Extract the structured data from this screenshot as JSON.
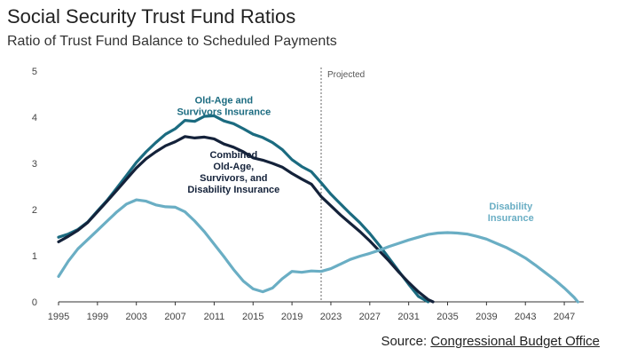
{
  "title": "Social Security Trust Fund Ratios",
  "subtitle": "Ratio of Trust Fund Balance to Scheduled Payments",
  "source": {
    "prefix": "Source: ",
    "link_text": "Congressional Budget Office"
  },
  "colors": {
    "oasi": "#1b6b80",
    "combined": "#14223a",
    "di": "#6aaec4",
    "axis": "#333333",
    "divider": "#666666"
  },
  "chart_data": {
    "type": "line",
    "title": "Social Security Trust Fund Ratios",
    "subtitle": "Ratio of Trust Fund Balance to Scheduled Payments",
    "xlim": [
      1995,
      2049
    ],
    "ylim": [
      0,
      5
    ],
    "x_ticks": [
      1995,
      1999,
      2003,
      2007,
      2011,
      2015,
      2019,
      2023,
      2027,
      2031,
      2035,
      2039,
      2043,
      2047
    ],
    "y_ticks": [
      0,
      1,
      2,
      3,
      4,
      5
    ],
    "projected_start": 2022,
    "projected_label": "Projected",
    "grid": false,
    "series": [
      {
        "name": "Old-Age and Survivors Insurance",
        "label_lines": [
          "Old-Age and",
          "Survivors Insurance"
        ],
        "color": "#1b6b80",
        "points": [
          [
            1995,
            1.4
          ],
          [
            1996,
            1.47
          ],
          [
            1997,
            1.57
          ],
          [
            1998,
            1.73
          ],
          [
            1999,
            1.97
          ],
          [
            2000,
            2.2
          ],
          [
            2001,
            2.47
          ],
          [
            2002,
            2.74
          ],
          [
            2003,
            3.02
          ],
          [
            2004,
            3.25
          ],
          [
            2005,
            3.45
          ],
          [
            2006,
            3.63
          ],
          [
            2007,
            3.75
          ],
          [
            2008,
            3.93
          ],
          [
            2009,
            3.91
          ],
          [
            2010,
            4.02
          ],
          [
            2011,
            4.03
          ],
          [
            2012,
            3.92
          ],
          [
            2013,
            3.86
          ],
          [
            2014,
            3.75
          ],
          [
            2015,
            3.63
          ],
          [
            2016,
            3.56
          ],
          [
            2017,
            3.45
          ],
          [
            2018,
            3.3
          ],
          [
            2019,
            3.08
          ],
          [
            2020,
            2.93
          ],
          [
            2021,
            2.82
          ],
          [
            2022,
            2.58
          ],
          [
            2023,
            2.33
          ],
          [
            2024,
            2.12
          ],
          [
            2025,
            1.91
          ],
          [
            2026,
            1.71
          ],
          [
            2027,
            1.48
          ],
          [
            2028,
            1.22
          ],
          [
            2029,
            0.94
          ],
          [
            2030,
            0.66
          ],
          [
            2031,
            0.38
          ],
          [
            2032,
            0.12
          ],
          [
            2033,
            0.0
          ]
        ]
      },
      {
        "name": "Combined Old-Age, Survivors, and Disability Insurance",
        "label_lines": [
          "Combined",
          "Old-Age,",
          "Survivors, and",
          "Disability Insurance"
        ],
        "color": "#14223a",
        "points": [
          [
            1995,
            1.3
          ],
          [
            1996,
            1.42
          ],
          [
            1997,
            1.55
          ],
          [
            1998,
            1.72
          ],
          [
            1999,
            1.95
          ],
          [
            2000,
            2.18
          ],
          [
            2001,
            2.42
          ],
          [
            2002,
            2.66
          ],
          [
            2003,
            2.9
          ],
          [
            2004,
            3.1
          ],
          [
            2005,
            3.25
          ],
          [
            2006,
            3.38
          ],
          [
            2007,
            3.47
          ],
          [
            2008,
            3.58
          ],
          [
            2009,
            3.55
          ],
          [
            2010,
            3.57
          ],
          [
            2011,
            3.53
          ],
          [
            2012,
            3.42
          ],
          [
            2013,
            3.35
          ],
          [
            2014,
            3.25
          ],
          [
            2015,
            3.12
          ],
          [
            2016,
            3.07
          ],
          [
            2017,
            3.0
          ],
          [
            2018,
            2.92
          ],
          [
            2019,
            2.78
          ],
          [
            2020,
            2.66
          ],
          [
            2021,
            2.55
          ],
          [
            2022,
            2.28
          ],
          [
            2023,
            2.08
          ],
          [
            2024,
            1.88
          ],
          [
            2025,
            1.7
          ],
          [
            2026,
            1.52
          ],
          [
            2027,
            1.32
          ],
          [
            2028,
            1.1
          ],
          [
            2029,
            0.88
          ],
          [
            2030,
            0.64
          ],
          [
            2031,
            0.42
          ],
          [
            2032,
            0.22
          ],
          [
            2033,
            0.05
          ],
          [
            2033.5,
            0.0
          ]
        ]
      },
      {
        "name": "Disability Insurance",
        "label_lines": [
          "Disability",
          "Insurance"
        ],
        "color": "#6aaec4",
        "points": [
          [
            1995,
            0.55
          ],
          [
            1996,
            0.88
          ],
          [
            1997,
            1.15
          ],
          [
            1998,
            1.35
          ],
          [
            1999,
            1.55
          ],
          [
            2000,
            1.75
          ],
          [
            2001,
            1.95
          ],
          [
            2002,
            2.12
          ],
          [
            2003,
            2.21
          ],
          [
            2004,
            2.18
          ],
          [
            2005,
            2.1
          ],
          [
            2006,
            2.06
          ],
          [
            2007,
            2.05
          ],
          [
            2008,
            1.95
          ],
          [
            2009,
            1.75
          ],
          [
            2010,
            1.52
          ],
          [
            2011,
            1.25
          ],
          [
            2012,
            0.98
          ],
          [
            2013,
            0.7
          ],
          [
            2014,
            0.45
          ],
          [
            2015,
            0.28
          ],
          [
            2016,
            0.22
          ],
          [
            2017,
            0.3
          ],
          [
            2018,
            0.5
          ],
          [
            2019,
            0.66
          ],
          [
            2020,
            0.64
          ],
          [
            2021,
            0.67
          ],
          [
            2022,
            0.66
          ],
          [
            2023,
            0.72
          ],
          [
            2024,
            0.82
          ],
          [
            2025,
            0.92
          ],
          [
            2026,
            0.99
          ],
          [
            2027,
            1.05
          ],
          [
            2028,
            1.12
          ],
          [
            2029,
            1.2
          ],
          [
            2030,
            1.27
          ],
          [
            2031,
            1.34
          ],
          [
            2032,
            1.4
          ],
          [
            2033,
            1.46
          ],
          [
            2034,
            1.49
          ],
          [
            2035,
            1.5
          ],
          [
            2036,
            1.49
          ],
          [
            2037,
            1.47
          ],
          [
            2038,
            1.42
          ],
          [
            2039,
            1.36
          ],
          [
            2040,
            1.27
          ],
          [
            2041,
            1.18
          ],
          [
            2042,
            1.07
          ],
          [
            2043,
            0.95
          ],
          [
            2044,
            0.8
          ],
          [
            2045,
            0.64
          ],
          [
            2046,
            0.48
          ],
          [
            2047,
            0.3
          ],
          [
            2048,
            0.1
          ],
          [
            2048.4,
            0.0
          ]
        ]
      }
    ]
  }
}
